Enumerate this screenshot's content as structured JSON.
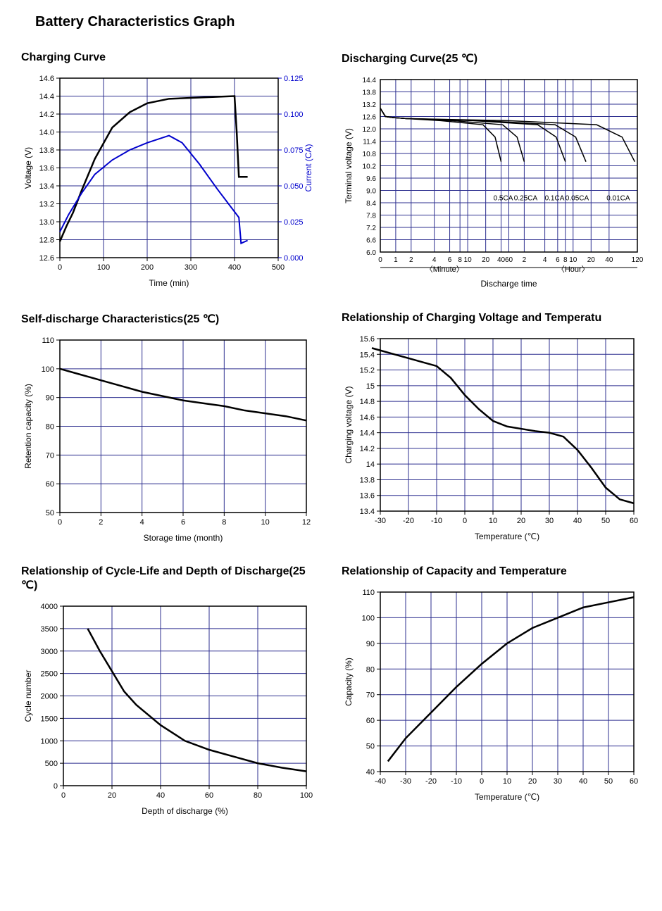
{
  "page_title": "Battery Characteristics Graph",
  "charts": {
    "charging": {
      "type": "line-dual-axis",
      "title": "Charging Curve",
      "xlabel": "Time (min)",
      "ylabel_left": "Voltage (V)",
      "ylabel_right": "Current (CA)",
      "xlim": [
        0,
        500
      ],
      "xticks": [
        0,
        100,
        200,
        300,
        400,
        500
      ],
      "ylim_left": [
        12.6,
        14.6
      ],
      "yticks_left": [
        12.6,
        12.8,
        13.0,
        13.2,
        13.4,
        13.6,
        13.8,
        14.0,
        14.2,
        14.4,
        14.6
      ],
      "ylim_right": [
        0.0,
        0.125
      ],
      "yticks_right": [
        0.0,
        0.025,
        0.05,
        0.075,
        0.1,
        0.125
      ],
      "grid_color": "#2d2f8f",
      "voltage": {
        "x": [
          0,
          15,
          30,
          50,
          80,
          120,
          160,
          200,
          250,
          300,
          350,
          400,
          405,
          410,
          430
        ],
        "y": [
          12.78,
          12.95,
          13.1,
          13.35,
          13.7,
          14.05,
          14.22,
          14.32,
          14.37,
          14.38,
          14.39,
          14.4,
          14.0,
          13.5,
          13.5
        ],
        "color": "#000000",
        "width": 2.5
      },
      "current": {
        "x": [
          0,
          20,
          50,
          80,
          120,
          160,
          200,
          250,
          280,
          320,
          360,
          400,
          410,
          415,
          430
        ],
        "y": [
          0.018,
          0.03,
          0.045,
          0.058,
          0.068,
          0.075,
          0.08,
          0.085,
          0.08,
          0.065,
          0.048,
          0.032,
          0.028,
          0.01,
          0.012
        ],
        "color": "#0000cc",
        "width": 2
      }
    },
    "discharging": {
      "type": "line-log-x",
      "title": "Discharging Curve(25 ℃)",
      "xlabel": "Discharge time",
      "x_sections": [
        "〈Minute〉",
        "〈Hour〉"
      ],
      "ylabel": "Terminal voltage (V)",
      "ylim": [
        6.0,
        14.4
      ],
      "yticks": [
        6.0,
        6.6,
        7.2,
        7.8,
        8.4,
        9.0,
        9.6,
        10.2,
        10.8,
        11.4,
        12.0,
        12.6,
        13.2,
        13.8,
        14.4
      ],
      "log_ticks_minute": [
        0,
        1,
        2,
        4,
        6,
        8,
        10,
        20,
        40,
        60
      ],
      "log_ticks_hour": [
        2,
        4,
        6,
        8,
        10,
        20,
        40,
        120
      ],
      "grid_color": "#2d2f8f",
      "line_color": "#000000",
      "series": {
        "0.5CA": {
          "label": "0.5CA",
          "label_pos": [
            0.44,
            0.68
          ]
        },
        "0.25CA": {
          "label": "0.25CA",
          "label_pos": [
            0.54,
            0.68
          ]
        },
        "0.1CA": {
          "label": "0.1CA",
          "label_pos": [
            0.65,
            0.68
          ]
        },
        "0.05CA": {
          "label": "0.05CA",
          "label_pos": [
            0.72,
            0.68
          ]
        },
        "0.01CA": {
          "label": "0.01CA",
          "label_pos": [
            0.88,
            0.68
          ]
        }
      }
    },
    "self_discharge": {
      "type": "line",
      "title": "Self-discharge Characteristics(25 ℃)",
      "xlabel": "Storage time (month)",
      "ylabel": "Retention capacity (%)",
      "xlim": [
        0,
        12
      ],
      "xticks": [
        0,
        2,
        4,
        6,
        8,
        10,
        12
      ],
      "ylim": [
        50,
        110
      ],
      "yticks": [
        50,
        60,
        70,
        80,
        90,
        100,
        110
      ],
      "grid_color": "#2d2f8f",
      "data": {
        "x": [
          0,
          1,
          2,
          3,
          4,
          5,
          6,
          7,
          8,
          9,
          10,
          11,
          12
        ],
        "y": [
          100,
          98,
          96,
          94,
          92,
          90.5,
          89,
          88,
          87,
          85.5,
          84.5,
          83.5,
          82
        ],
        "color": "#000000",
        "width": 2.5
      }
    },
    "charging_voltage_temp": {
      "type": "line",
      "title": "Relationship of Charging Voltage and Temperatu",
      "xlabel": "Temperature (℃)",
      "ylabel": "Charging voltage (V)",
      "xlim": [
        -30,
        60
      ],
      "xticks": [
        -30,
        -20,
        -10,
        0,
        10,
        20,
        30,
        40,
        50,
        60
      ],
      "ylim": [
        13.4,
        15.6
      ],
      "yticks": [
        13.4,
        13.6,
        13.8,
        14.0,
        14.2,
        14.4,
        14.6,
        14.8,
        15.0,
        15.2,
        15.4,
        15.6
      ],
      "grid_color": "#2d2f8f",
      "data": {
        "x": [
          -33,
          -25,
          -20,
          -15,
          -10,
          -5,
          0,
          5,
          10,
          15,
          20,
          25,
          30,
          35,
          40,
          45,
          50,
          55,
          60
        ],
        "y": [
          15.48,
          15.4,
          15.35,
          15.3,
          15.25,
          15.1,
          14.88,
          14.7,
          14.55,
          14.48,
          14.45,
          14.42,
          14.4,
          14.35,
          14.18,
          13.95,
          13.7,
          13.55,
          13.5
        ],
        "color": "#000000",
        "width": 2.5
      }
    },
    "cycle_life": {
      "type": "line",
      "title": "Relationship of Cycle-Life and Depth of Discharge(25 ℃)",
      "xlabel": "Depth of discharge (%)",
      "ylabel": "Cycle number",
      "xlim": [
        0,
        100
      ],
      "xticks": [
        0,
        20,
        40,
        60,
        80,
        100
      ],
      "ylim": [
        0,
        4000
      ],
      "yticks": [
        0,
        500,
        1000,
        1500,
        2000,
        2500,
        3000,
        3500,
        4000
      ],
      "grid_color": "#2d2f8f",
      "data": {
        "x": [
          10,
          15,
          20,
          25,
          30,
          40,
          50,
          60,
          70,
          80,
          90,
          100
        ],
        "y": [
          3500,
          3000,
          2550,
          2100,
          1800,
          1350,
          1000,
          800,
          650,
          500,
          400,
          320
        ],
        "color": "#000000",
        "width": 2.5
      }
    },
    "capacity_temp": {
      "type": "line",
      "title": "Relationship of Capacity and Temperature",
      "xlabel": "Temperature (℃)",
      "ylabel": "Capacity (%)",
      "xlim": [
        -40,
        60
      ],
      "xticks": [
        -40,
        -30,
        -20,
        -10,
        0,
        10,
        20,
        30,
        40,
        50,
        60
      ],
      "ylim": [
        40,
        110
      ],
      "yticks": [
        40,
        50,
        60,
        70,
        80,
        90,
        100,
        110
      ],
      "grid_color": "#2d2f8f",
      "data": {
        "x": [
          -37,
          -30,
          -20,
          -10,
          0,
          10,
          20,
          30,
          40,
          50,
          60
        ],
        "y": [
          44,
          53,
          63,
          73,
          82,
          90,
          96,
          100,
          104,
          106,
          108
        ],
        "color": "#000000",
        "width": 2.5
      }
    }
  }
}
